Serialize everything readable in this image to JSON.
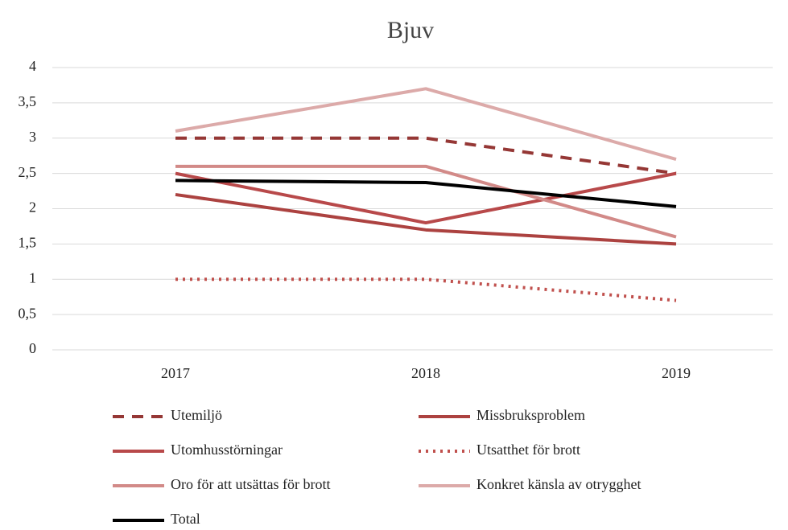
{
  "chart_data": {
    "type": "line",
    "title": "Bjuv",
    "categories": [
      "2017",
      "2018",
      "2019"
    ],
    "series": [
      {
        "name": "Utemiljö",
        "color": "#953735",
        "dash": "dashed",
        "values": [
          3,
          3,
          2.5
        ]
      },
      {
        "name": "Missbruksproblem",
        "color": "#ac4240",
        "dash": "solid",
        "values": [
          2.2,
          1.7,
          1.5
        ]
      },
      {
        "name": "Utomhusstörningar",
        "color": "#b8494a",
        "dash": "solid",
        "values": [
          2.5,
          1.8,
          2.5
        ]
      },
      {
        "name": "Utsatthet för brott",
        "color": "#c0504d",
        "dash": "dotted",
        "values": [
          1,
          1,
          0.7
        ]
      },
      {
        "name": "Oro för att utsättas för brott",
        "color": "#d28a88",
        "dash": "solid",
        "values": [
          2.6,
          2.6,
          1.6
        ]
      },
      {
        "name": "Konkret känsla av otrygghet",
        "color": "#dcaaa9",
        "dash": "solid",
        "values": [
          3.1,
          3.7,
          2.7
        ]
      },
      {
        "name": "Total",
        "color": "#000000",
        "dash": "solid",
        "values": [
          2.4,
          2.37,
          2.03
        ]
      }
    ],
    "ylim": [
      0,
      4
    ],
    "yticks": [
      0,
      {
        "value": 0.5,
        "label": "0,5"
      },
      1,
      {
        "value": 1.5,
        "label": "1,5"
      },
      2,
      {
        "value": 2.5,
        "label": "2,5"
      },
      3,
      {
        "value": 3.5,
        "label": "3,5"
      },
      4
    ],
    "grid": true,
    "legend": "bottom"
  }
}
